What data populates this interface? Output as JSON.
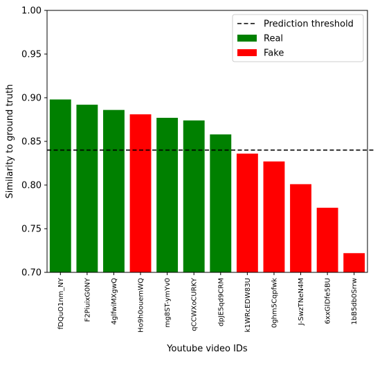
{
  "chart_data": {
    "type": "bar",
    "title": "",
    "xlabel": "Youtube video IDs",
    "ylabel": "Similarity to ground truth",
    "ylim": [
      0.7,
      1.0
    ],
    "yticks": [
      0.7,
      0.75,
      0.8,
      0.85,
      0.9,
      0.95,
      1.0
    ],
    "ytick_labels": [
      "0.70",
      "0.75",
      "0.80",
      "0.85",
      "0.90",
      "0.95",
      "1.00"
    ],
    "threshold": 0.84,
    "legend_position": "top-right",
    "legend": [
      {
        "label": "Prediction threshold",
        "kind": "line",
        "color": "#000000"
      },
      {
        "label": "Real",
        "kind": "patch",
        "color": "#008000"
      },
      {
        "label": "Fake",
        "kind": "patch",
        "color": "#ff0000"
      }
    ],
    "colors": {
      "Real": "#008000",
      "Fake": "#ff0000"
    },
    "categories": [
      "fDQuO1nm_NY",
      "F2PiuixG0NY",
      "4glfwiMXgwQ",
      "Ho9h0ouemWQ",
      "mg8ST-ymYv0",
      "qCCWXoCURKY",
      "dpJE5qd9CRM",
      "k1WRcEDW83U",
      "0ghm5Cqpfwk",
      "J-SwzTNeN4M",
      "6xxGlDfe5BU",
      "1bB5db0Srrw"
    ],
    "values": [
      0.898,
      0.892,
      0.886,
      0.881,
      0.877,
      0.874,
      0.858,
      0.836,
      0.827,
      0.801,
      0.774,
      0.722
    ],
    "labels": [
      "Real",
      "Real",
      "Real",
      "Fake",
      "Real",
      "Real",
      "Real",
      "Fake",
      "Fake",
      "Fake",
      "Fake",
      "Fake"
    ]
  }
}
